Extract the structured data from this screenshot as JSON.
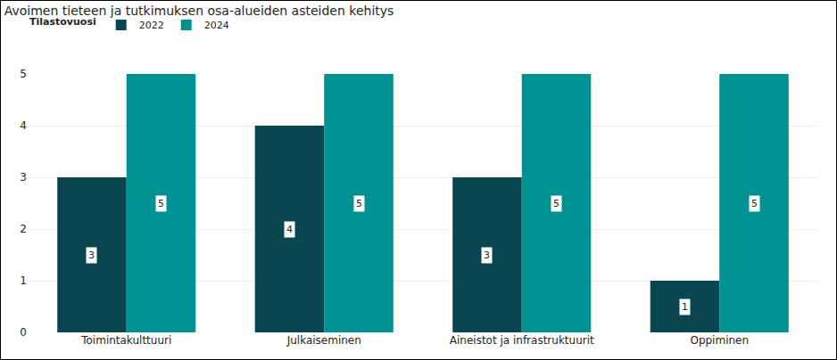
{
  "chart_data": {
    "type": "bar",
    "title": "Avoimen tieteen ja tutkimuksen osa-alueiden asteiden kehitys",
    "legend_title": "Tilastovuosi",
    "categories": [
      "Toimintakulttuuri",
      "Julkaiseminen",
      "Aineistot ja infrastruktuurit",
      "Oppiminen"
    ],
    "series": [
      {
        "name": "2022",
        "color": "#094650",
        "values": [
          3,
          4,
          3,
          1
        ]
      },
      {
        "name": "2024",
        "color": "#009193",
        "values": [
          5,
          5,
          5,
          5
        ]
      }
    ],
    "ylim": [
      0,
      5
    ],
    "yticks": [
      0,
      1,
      2,
      3,
      4,
      5
    ],
    "grid": true,
    "legend": "top-left",
    "data_labels": true
  }
}
